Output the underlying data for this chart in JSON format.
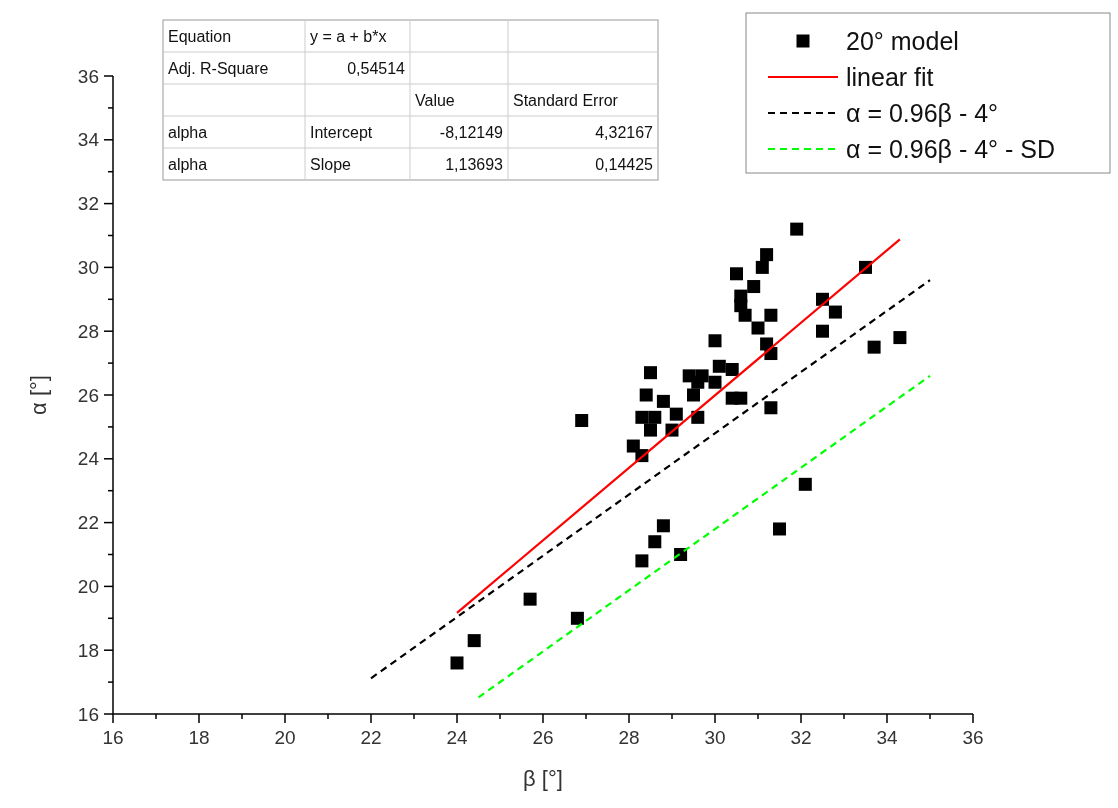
{
  "chart_data": {
    "type": "scatter",
    "xlabel": "β [°]",
    "ylabel": "α [°]",
    "xlim": [
      16,
      36
    ],
    "ylim": [
      16,
      36
    ],
    "xticks": [
      16,
      {
        "value": 17,
        "label": null
      },
      18,
      {
        "value": 19,
        "label": null
      },
      20,
      {
        "value": 21,
        "label": null
      },
      22,
      {
        "value": 23,
        "label": null
      },
      24,
      {
        "value": 25,
        "label": null
      },
      26,
      {
        "value": 27,
        "label": null
      },
      28,
      {
        "value": 29,
        "label": null
      },
      30,
      {
        "value": 31,
        "label": null
      },
      32,
      {
        "value": 33,
        "label": null
      },
      34,
      {
        "value": 35,
        "label": null
      },
      36
    ],
    "yticks": [
      16,
      {
        "value": 17,
        "label": null
      },
      18,
      {
        "value": 19,
        "label": null
      },
      20,
      {
        "value": 21,
        "label": null
      },
      22,
      {
        "value": 23,
        "label": null
      },
      24,
      {
        "value": 25,
        "label": null
      },
      26,
      {
        "value": 27,
        "label": null
      },
      28,
      {
        "value": 29,
        "label": null
      },
      30,
      {
        "value": 31,
        "label": null
      },
      32,
      {
        "value": 33,
        "label": null
      },
      34,
      {
        "value": 35,
        "label": null
      },
      36
    ],
    "grid": false,
    "legend": "top right",
    "annotations": [
      "Equation",
      "y = a + b*x",
      "Adj. R-Square",
      "0,54514",
      "Value",
      "Standard Error",
      "alpha",
      "Intercept",
      "-8,12149",
      "4,32167",
      "alpha",
      "Slope",
      "1,13693",
      "0,14425"
    ],
    "series": [
      {
        "name": "20° model",
        "marker": "square",
        "color": "#000000",
        "x": [
          24.0,
          24.4,
          25.7,
          26.8,
          26.9,
          28.1,
          28.3,
          28.3,
          28.4,
          28.5,
          28.5,
          28.6,
          28.8,
          29.0,
          29.1,
          29.4,
          29.5,
          29.6,
          29.6,
          29.7,
          30.0,
          30.0,
          30.1,
          30.4,
          30.4,
          30.5,
          30.6,
          30.6,
          30.6,
          30.7,
          30.9,
          31.0,
          31.1,
          31.2,
          31.2,
          31.3,
          31.3,
          31.3,
          31.9,
          32.5,
          32.5,
          32.8,
          33.5,
          33.7,
          34.3,
          28.3,
          28.6,
          28.8,
          29.2,
          32.1,
          31.5
        ],
        "values": [
          17.6,
          18.3,
          19.6,
          19.0,
          25.2,
          24.4,
          24.1,
          25.3,
          26.0,
          26.7,
          24.9,
          25.3,
          25.8,
          24.9,
          25.4,
          26.6,
          26.0,
          25.3,
          26.4,
          26.6,
          27.7,
          26.4,
          26.9,
          26.8,
          25.9,
          29.8,
          29.1,
          28.8,
          25.9,
          28.5,
          29.4,
          28.1,
          30.0,
          30.4,
          27.6,
          28.5,
          27.3,
          25.6,
          31.2,
          29.0,
          28.0,
          28.6,
          30.0,
          27.5,
          27.8,
          20.8,
          21.4,
          21.9,
          21.0,
          23.2,
          21.8
        ]
      },
      {
        "name": "linear fit",
        "type": "line",
        "marker": "none",
        "line_style": "solid",
        "color": "#ff0000",
        "x": [
          24,
          34.3
        ],
        "values": [
          19.17,
          30.88
        ]
      },
      {
        "name": "α = 0.96β - 4°",
        "type": "line",
        "marker": "none",
        "line_style": "dashed",
        "color": "#000000",
        "x": [
          22,
          35
        ],
        "values": [
          17.12,
          29.6
        ]
      },
      {
        "name": "α = 0.96β - 4° - SD",
        "type": "line",
        "marker": "none",
        "line_style": "dashed",
        "color": "#00ff00",
        "x": [
          24.5,
          35
        ],
        "values": [
          16.52,
          26.6
        ]
      }
    ]
  }
}
